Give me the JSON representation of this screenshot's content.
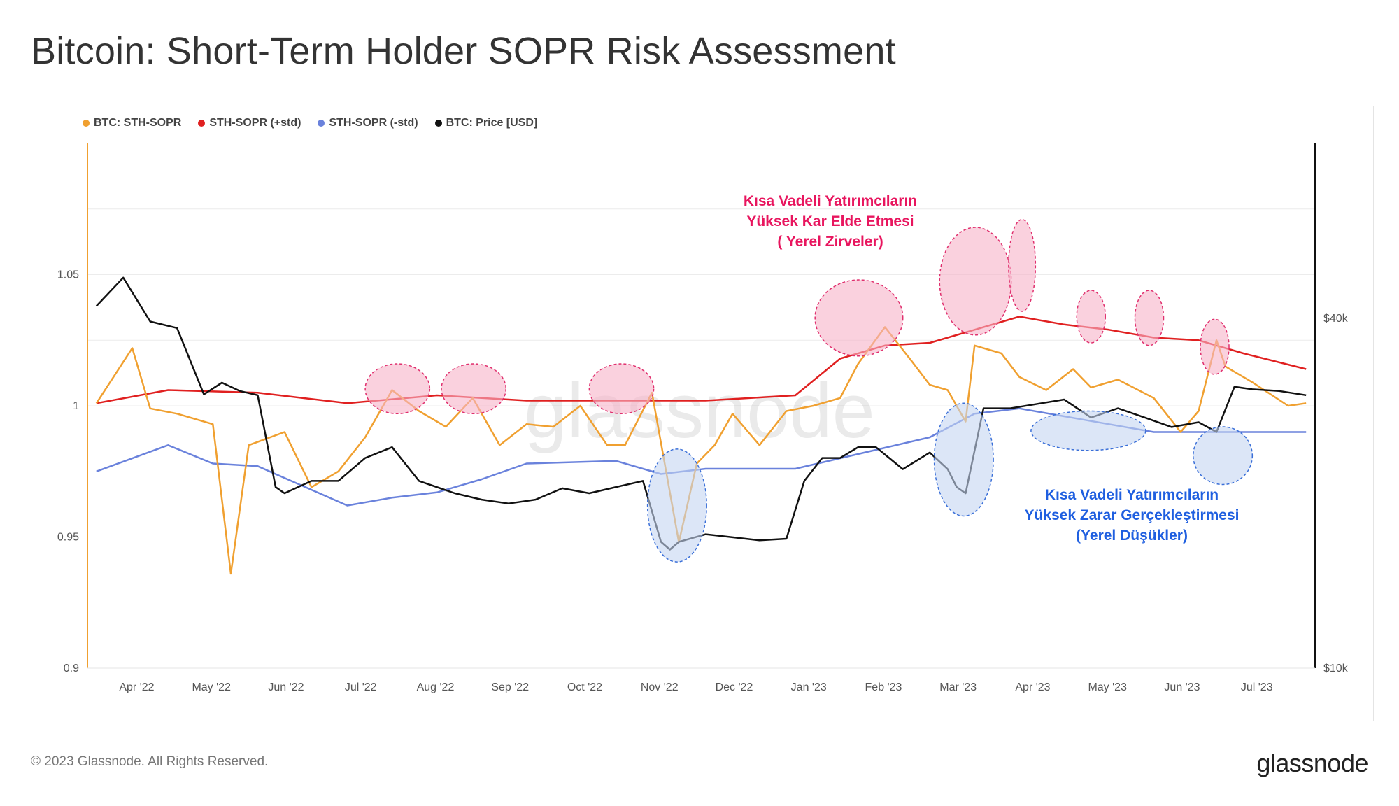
{
  "title": "Bitcoin: Short-Term Holder SOPR Risk Assessment",
  "footer": {
    "copyright": "© 2023 Glassnode. All Rights Reserved.",
    "brand": "glassnode"
  },
  "watermark": "glassnode",
  "colors": {
    "sopr": "#f0a030",
    "plus_std": "#e02020",
    "minus_std": "#6a82dc",
    "price": "#111111",
    "peak_fill": "#f6b2c8",
    "peak_stroke": "#e0306e",
    "dip_fill": "#c4d6f2",
    "dip_stroke": "#3a6fd8",
    "peak_text": "#e8155e",
    "dip_text": "#1f5fe0"
  },
  "legend": [
    {
      "label": "BTC: STH-SOPR",
      "color": "#f0a030"
    },
    {
      "label": "STH-SOPR (+std)",
      "color": "#e02020"
    },
    {
      "label": "STH-SOPR (-std)",
      "color": "#6a82dc"
    },
    {
      "label": "BTC: Price [USD]",
      "color": "#111111"
    }
  ],
  "annotations": {
    "peaks_text": [
      "Kısa Vadeli Yatırımcıların",
      "Yüksek Kar Elde Etmesi",
      "( Yerel Zirveler)"
    ],
    "dips_text": [
      "Kısa Vadeli Yatırımcıların",
      "Yüksek Zarar Gerçekleştirmesi",
      "(Yerel Düşükler)"
    ],
    "peak_markers": [
      {
        "date": 2022.556,
        "value": 1.0065,
        "date_span": 0.036,
        "value_span": 0.0095
      },
      {
        "date": 2022.641,
        "value": 1.0065,
        "date_span": 0.036,
        "value_span": 0.0095
      },
      {
        "date": 2022.806,
        "value": 1.0065,
        "date_span": 0.036,
        "value_span": 0.0095
      },
      {
        "date": 2023.071,
        "value": 1.0335,
        "date_span": 0.049,
        "value_span": 0.0145
      },
      {
        "date": 2023.201,
        "value": 1.0475,
        "date_span": 0.04,
        "value_span": 0.0205
      },
      {
        "date": 2023.253,
        "value": 1.0535,
        "date_span": 0.015,
        "value_span": 0.0175
      },
      {
        "date": 2023.33,
        "value": 1.034,
        "date_span": 0.016,
        "value_span": 0.01
      },
      {
        "date": 2023.395,
        "value": 1.0335,
        "date_span": 0.016,
        "value_span": 0.0105
      },
      {
        "date": 2023.468,
        "value": 1.0225,
        "date_span": 0.016,
        "value_span": 0.0105
      }
    ],
    "dip_markers": [
      {
        "date": 2022.868,
        "value": 0.962,
        "date_span": 0.033,
        "value_span": 0.0215
      },
      {
        "date": 2023.188,
        "value": 0.9795,
        "date_span": 0.033,
        "value_span": 0.0215
      },
      {
        "date": 2023.327,
        "value": 0.9905,
        "date_span": 0.064,
        "value_span": 0.0075
      },
      {
        "date": 2023.477,
        "value": 0.981,
        "date_span": 0.033,
        "value_span": 0.011
      }
    ]
  },
  "chart_data": {
    "type": "line",
    "title": "Bitcoin: Short-Term Holder SOPR Risk Assessment",
    "x_tick_labels": [
      "Apr '22",
      "May '22",
      "Jun '22",
      "Jul '22",
      "Aug '22",
      "Sep '22",
      "Oct '22",
      "Nov '22",
      "Dec '22",
      "Jan '23",
      "Feb '23",
      "Mar '23",
      "Apr '23",
      "May '23",
      "Jun '23",
      "Jul '23"
    ],
    "x_range": [
      "2022-03-20",
      "2023-07-30"
    ],
    "y_left_ticks": [
      "0.9",
      "0.95",
      "1",
      "1.05"
    ],
    "y_left_range": [
      0.9,
      1.1
    ],
    "y_right_ticks": [
      "$10k",
      "$40k"
    ],
    "y_right_scale": "log",
    "y_right_range": [
      10000,
      80000
    ],
    "series": [
      {
        "name": "BTC: STH-SOPR",
        "x": [
          2022.22,
          2022.26,
          2022.28,
          2022.31,
          2022.35,
          2022.37,
          2022.39,
          2022.43,
          2022.46,
          2022.49,
          2022.52,
          2022.55,
          2022.58,
          2022.61,
          2022.64,
          2022.67,
          2022.7,
          2022.73,
          2022.76,
          2022.79,
          2022.81,
          2022.84,
          2022.87,
          2022.89,
          2022.91,
          2022.93,
          2022.96,
          2022.99,
          2023.02,
          2023.05,
          2023.07,
          2023.1,
          2023.13,
          2023.15,
          2023.17,
          2023.19,
          2023.2,
          2023.23,
          2023.25,
          2023.28,
          2023.31,
          2023.33,
          2023.36,
          2023.4,
          2023.43,
          2023.45,
          2023.47,
          2023.48,
          2023.51,
          2023.55,
          2023.57
        ],
        "values": [
          1.001,
          1.022,
          0.999,
          0.997,
          0.993,
          0.936,
          0.985,
          0.99,
          0.969,
          0.975,
          0.988,
          1.006,
          0.998,
          0.992,
          1.003,
          0.985,
          0.993,
          0.992,
          1.0,
          0.985,
          0.985,
          1.005,
          0.948,
          0.978,
          0.985,
          0.997,
          0.985,
          0.998,
          1.0,
          1.003,
          1.016,
          1.03,
          1.017,
          1.008,
          1.006,
          0.994,
          1.023,
          1.02,
          1.011,
          1.006,
          1.014,
          1.007,
          1.01,
          1.003,
          0.99,
          0.998,
          1.025,
          1.015,
          1.009,
          1.0,
          1.001
        ]
      },
      {
        "name": "STH-SOPR (+std)",
        "x": [
          2022.22,
          2022.3,
          2022.4,
          2022.5,
          2022.6,
          2022.7,
          2022.8,
          2022.9,
          2023.0,
          2023.05,
          2023.1,
          2023.15,
          2023.2,
          2023.25,
          2023.3,
          2023.35,
          2023.4,
          2023.45,
          2023.5,
          2023.57
        ],
        "values": [
          1.001,
          1.006,
          1.005,
          1.001,
          1.004,
          1.002,
          1.002,
          1.002,
          1.004,
          1.018,
          1.023,
          1.024,
          1.029,
          1.034,
          1.031,
          1.029,
          1.026,
          1.025,
          1.02,
          1.014
        ]
      },
      {
        "name": "STH-SOPR (-std)",
        "x": [
          2022.22,
          2022.3,
          2022.35,
          2022.4,
          2022.5,
          2022.55,
          2022.6,
          2022.65,
          2022.7,
          2022.8,
          2022.85,
          2022.9,
          2023.0,
          2023.1,
          2023.15,
          2023.2,
          2023.25,
          2023.3,
          2023.35,
          2023.4,
          2023.45,
          2023.5,
          2023.57
        ],
        "values": [
          0.975,
          0.985,
          0.978,
          0.977,
          0.962,
          0.965,
          0.967,
          0.972,
          0.978,
          0.979,
          0.974,
          0.976,
          0.976,
          0.984,
          0.988,
          0.997,
          0.999,
          0.996,
          0.993,
          0.99,
          0.99,
          0.99,
          0.99
        ]
      },
      {
        "name": "BTC: Price [USD]",
        "x": [
          2022.22,
          2022.25,
          2022.28,
          2022.31,
          2022.34,
          2022.36,
          2022.38,
          2022.4,
          2022.42,
          2022.43,
          2022.46,
          2022.49,
          2022.52,
          2022.55,
          2022.58,
          2022.62,
          2022.65,
          2022.68,
          2022.71,
          2022.74,
          2022.77,
          2022.8,
          2022.83,
          2022.85,
          2022.86,
          2022.87,
          2022.9,
          2022.93,
          2022.96,
          2022.99,
          2023.01,
          2023.03,
          2023.05,
          2023.07,
          2023.09,
          2023.12,
          2023.15,
          2023.17,
          2023.18,
          2023.19,
          2023.21,
          2023.24,
          2023.27,
          2023.3,
          2023.33,
          2023.36,
          2023.39,
          2023.42,
          2023.45,
          2023.47,
          2023.49,
          2023.51,
          2023.54,
          2023.57
        ],
        "values": [
          42000,
          47000,
          39500,
          38500,
          29600,
          31000,
          30000,
          29500,
          20500,
          20000,
          21000,
          21000,
          23000,
          24000,
          21000,
          20000,
          19500,
          19200,
          19500,
          20400,
          20000,
          20500,
          21000,
          16500,
          16000,
          16500,
          17000,
          16800,
          16600,
          16700,
          21000,
          23000,
          23000,
          24000,
          24000,
          22000,
          23500,
          22000,
          20500,
          20000,
          28000,
          28000,
          28500,
          29000,
          27000,
          28000,
          27000,
          26000,
          26500,
          25500,
          30500,
          30200,
          30000,
          29500
        ]
      }
    ]
  }
}
